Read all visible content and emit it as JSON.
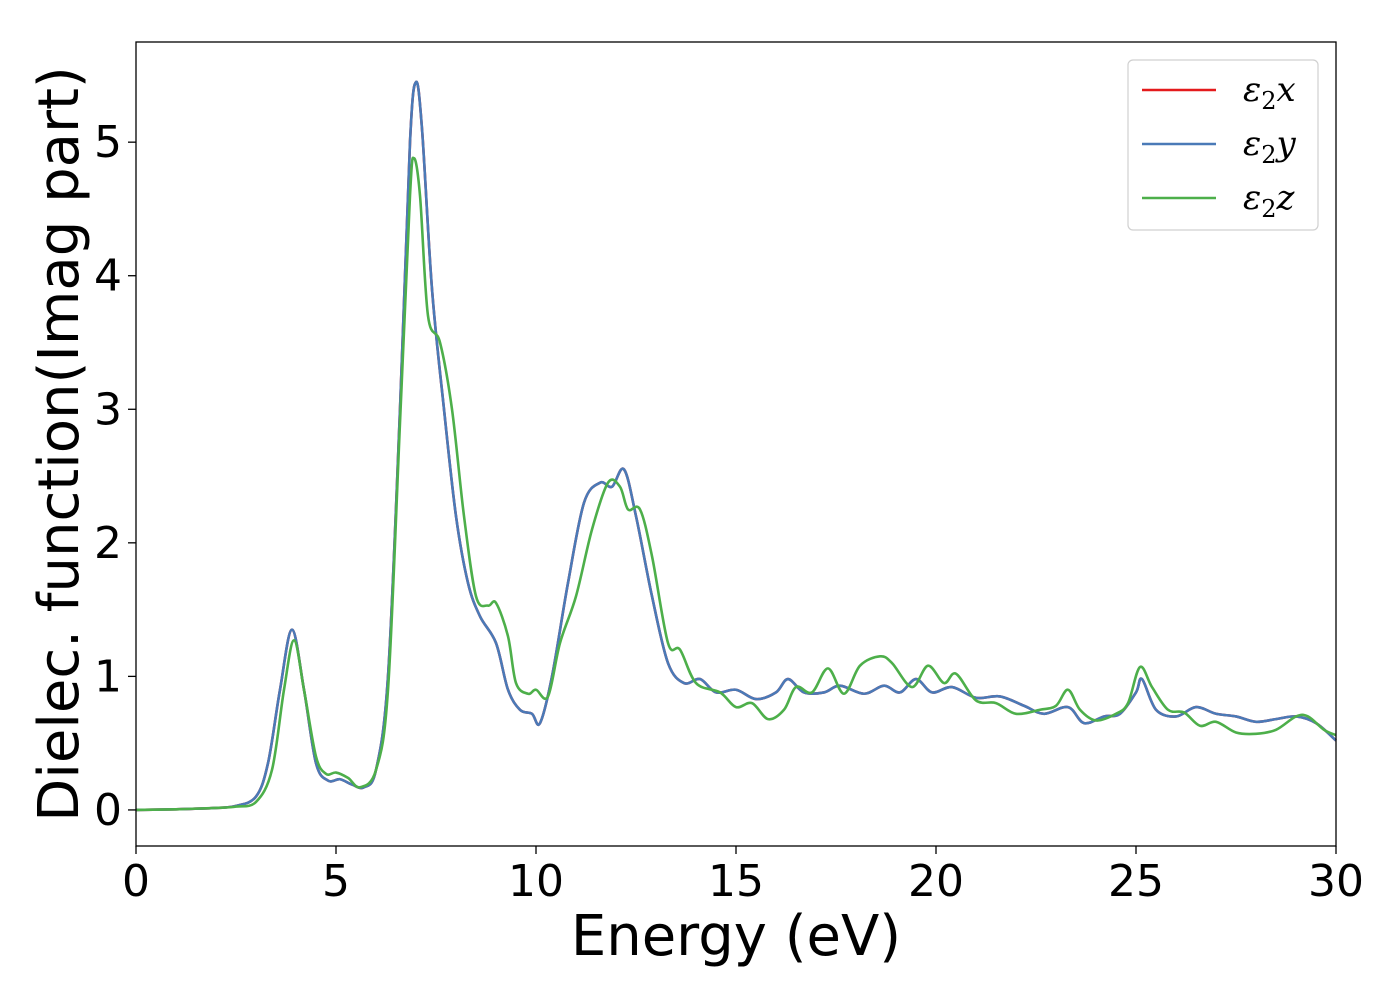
{
  "chart_data": {
    "type": "line",
    "xlabel": "Energy (eV)",
    "ylabel": "Dielec. function(Imag part)",
    "xlim": [
      0,
      30
    ],
    "ylim": [
      -0.27,
      5.75
    ],
    "xticks": [
      0,
      5,
      10,
      15,
      20,
      25,
      30
    ],
    "yticks": [
      0,
      1,
      2,
      3,
      4,
      5
    ],
    "grid": false,
    "legend_position": "top-right",
    "series": [
      {
        "name": "ε2x",
        "legend": {
          "base": "ε",
          "sub": "2",
          "var": "x"
        },
        "color": "#e41a1c",
        "points": [
          [
            0,
            0
          ],
          [
            1,
            0.005
          ],
          [
            2,
            0.015
          ],
          [
            2.5,
            0.03
          ],
          [
            3,
            0.1
          ],
          [
            3.3,
            0.35
          ],
          [
            3.6,
            0.9
          ],
          [
            3.9,
            1.35
          ],
          [
            4.2,
            0.9
          ],
          [
            4.5,
            0.35
          ],
          [
            4.8,
            0.22
          ],
          [
            5.1,
            0.23
          ],
          [
            5.4,
            0.19
          ],
          [
            5.7,
            0.17
          ],
          [
            6,
            0.3
          ],
          [
            6.3,
            1.0
          ],
          [
            6.6,
            3.0
          ],
          [
            6.85,
            5.0
          ],
          [
            7.0,
            5.45
          ],
          [
            7.15,
            5.1
          ],
          [
            7.4,
            3.9
          ],
          [
            7.7,
            3.0
          ],
          [
            8.0,
            2.2
          ],
          [
            8.3,
            1.7
          ],
          [
            8.6,
            1.45
          ],
          [
            9.0,
            1.25
          ],
          [
            9.3,
            0.9
          ],
          [
            9.6,
            0.75
          ],
          [
            9.9,
            0.72
          ],
          [
            10.1,
            0.65
          ],
          [
            10.4,
            1.0
          ],
          [
            10.8,
            1.7
          ],
          [
            11.2,
            2.3
          ],
          [
            11.6,
            2.45
          ],
          [
            11.9,
            2.42
          ],
          [
            12.2,
            2.55
          ],
          [
            12.5,
            2.2
          ],
          [
            12.9,
            1.6
          ],
          [
            13.3,
            1.1
          ],
          [
            13.7,
            0.95
          ],
          [
            14.1,
            0.98
          ],
          [
            14.5,
            0.88
          ],
          [
            15.0,
            0.9
          ],
          [
            15.5,
            0.83
          ],
          [
            16.0,
            0.88
          ],
          [
            16.3,
            0.98
          ],
          [
            16.7,
            0.88
          ],
          [
            17.2,
            0.88
          ],
          [
            17.6,
            0.93
          ],
          [
            18.2,
            0.87
          ],
          [
            18.7,
            0.93
          ],
          [
            19.1,
            0.88
          ],
          [
            19.5,
            0.98
          ],
          [
            19.9,
            0.88
          ],
          [
            20.4,
            0.92
          ],
          [
            21.0,
            0.84
          ],
          [
            21.6,
            0.85
          ],
          [
            22.2,
            0.78
          ],
          [
            22.7,
            0.72
          ],
          [
            23.3,
            0.77
          ],
          [
            23.7,
            0.65
          ],
          [
            24.2,
            0.7
          ],
          [
            24.6,
            0.72
          ],
          [
            25.0,
            0.88
          ],
          [
            25.15,
            0.98
          ],
          [
            25.5,
            0.75
          ],
          [
            26.0,
            0.7
          ],
          [
            26.5,
            0.77
          ],
          [
            27.0,
            0.72
          ],
          [
            27.5,
            0.7
          ],
          [
            28.0,
            0.66
          ],
          [
            28.5,
            0.68
          ],
          [
            29.0,
            0.7
          ],
          [
            29.5,
            0.65
          ],
          [
            30.0,
            0.52
          ]
        ]
      },
      {
        "name": "ε2y",
        "legend": {
          "base": "ε",
          "sub": "2",
          "var": "y"
        },
        "color": "#4a7ab7",
        "points": [
          [
            0,
            0
          ],
          [
            1,
            0.005
          ],
          [
            2,
            0.015
          ],
          [
            2.5,
            0.03
          ],
          [
            3,
            0.1
          ],
          [
            3.3,
            0.35
          ],
          [
            3.6,
            0.9
          ],
          [
            3.9,
            1.35
          ],
          [
            4.2,
            0.9
          ],
          [
            4.5,
            0.35
          ],
          [
            4.8,
            0.22
          ],
          [
            5.1,
            0.23
          ],
          [
            5.4,
            0.19
          ],
          [
            5.7,
            0.17
          ],
          [
            6,
            0.3
          ],
          [
            6.3,
            1.0
          ],
          [
            6.6,
            3.0
          ],
          [
            6.85,
            5.0
          ],
          [
            7.0,
            5.45
          ],
          [
            7.15,
            5.1
          ],
          [
            7.4,
            3.9
          ],
          [
            7.7,
            3.0
          ],
          [
            8.0,
            2.2
          ],
          [
            8.3,
            1.7
          ],
          [
            8.6,
            1.45
          ],
          [
            9.0,
            1.25
          ],
          [
            9.3,
            0.9
          ],
          [
            9.6,
            0.75
          ],
          [
            9.9,
            0.72
          ],
          [
            10.1,
            0.65
          ],
          [
            10.4,
            1.0
          ],
          [
            10.8,
            1.7
          ],
          [
            11.2,
            2.3
          ],
          [
            11.6,
            2.45
          ],
          [
            11.9,
            2.42
          ],
          [
            12.2,
            2.55
          ],
          [
            12.5,
            2.2
          ],
          [
            12.9,
            1.6
          ],
          [
            13.3,
            1.1
          ],
          [
            13.7,
            0.95
          ],
          [
            14.1,
            0.98
          ],
          [
            14.5,
            0.88
          ],
          [
            15.0,
            0.9
          ],
          [
            15.5,
            0.83
          ],
          [
            16.0,
            0.88
          ],
          [
            16.3,
            0.98
          ],
          [
            16.7,
            0.88
          ],
          [
            17.2,
            0.88
          ],
          [
            17.6,
            0.93
          ],
          [
            18.2,
            0.87
          ],
          [
            18.7,
            0.93
          ],
          [
            19.1,
            0.88
          ],
          [
            19.5,
            0.98
          ],
          [
            19.9,
            0.88
          ],
          [
            20.4,
            0.92
          ],
          [
            21.0,
            0.84
          ],
          [
            21.6,
            0.85
          ],
          [
            22.2,
            0.78
          ],
          [
            22.7,
            0.72
          ],
          [
            23.3,
            0.77
          ],
          [
            23.7,
            0.65
          ],
          [
            24.2,
            0.7
          ],
          [
            24.6,
            0.72
          ],
          [
            25.0,
            0.88
          ],
          [
            25.15,
            0.98
          ],
          [
            25.5,
            0.75
          ],
          [
            26.0,
            0.7
          ],
          [
            26.5,
            0.77
          ],
          [
            27.0,
            0.72
          ],
          [
            27.5,
            0.7
          ],
          [
            28.0,
            0.66
          ],
          [
            28.5,
            0.68
          ],
          [
            29.0,
            0.7
          ],
          [
            29.5,
            0.65
          ],
          [
            30.0,
            0.52
          ]
        ]
      },
      {
        "name": "ε2z",
        "legend": {
          "base": "ε",
          "sub": "2",
          "var": "z"
        },
        "color": "#4daf4a",
        "points": [
          [
            0,
            0
          ],
          [
            1,
            0.005
          ],
          [
            2,
            0.015
          ],
          [
            2.5,
            0.025
          ],
          [
            3,
            0.06
          ],
          [
            3.4,
            0.3
          ],
          [
            3.7,
            0.9
          ],
          [
            3.95,
            1.27
          ],
          [
            4.2,
            0.9
          ],
          [
            4.5,
            0.4
          ],
          [
            4.75,
            0.27
          ],
          [
            5.0,
            0.28
          ],
          [
            5.3,
            0.24
          ],
          [
            5.6,
            0.17
          ],
          [
            6,
            0.3
          ],
          [
            6.3,
            0.9
          ],
          [
            6.6,
            2.9
          ],
          [
            6.85,
            4.6
          ],
          [
            6.95,
            4.88
          ],
          [
            7.1,
            4.6
          ],
          [
            7.3,
            3.7
          ],
          [
            7.6,
            3.5
          ],
          [
            7.9,
            3.0
          ],
          [
            8.2,
            2.2
          ],
          [
            8.5,
            1.6
          ],
          [
            8.8,
            1.53
          ],
          [
            9.0,
            1.55
          ],
          [
            9.3,
            1.3
          ],
          [
            9.5,
            0.95
          ],
          [
            9.8,
            0.87
          ],
          [
            10.0,
            0.9
          ],
          [
            10.3,
            0.85
          ],
          [
            10.6,
            1.25
          ],
          [
            11.0,
            1.6
          ],
          [
            11.4,
            2.1
          ],
          [
            11.8,
            2.45
          ],
          [
            12.1,
            2.42
          ],
          [
            12.3,
            2.25
          ],
          [
            12.6,
            2.25
          ],
          [
            12.9,
            1.9
          ],
          [
            13.3,
            1.25
          ],
          [
            13.6,
            1.2
          ],
          [
            14.0,
            0.95
          ],
          [
            14.6,
            0.88
          ],
          [
            15.0,
            0.77
          ],
          [
            15.4,
            0.8
          ],
          [
            15.8,
            0.68
          ],
          [
            16.2,
            0.75
          ],
          [
            16.5,
            0.92
          ],
          [
            16.9,
            0.88
          ],
          [
            17.3,
            1.06
          ],
          [
            17.7,
            0.87
          ],
          [
            18.1,
            1.08
          ],
          [
            18.6,
            1.15
          ],
          [
            18.9,
            1.1
          ],
          [
            19.4,
            0.92
          ],
          [
            19.8,
            1.08
          ],
          [
            20.2,
            0.95
          ],
          [
            20.5,
            1.02
          ],
          [
            21.0,
            0.82
          ],
          [
            21.5,
            0.8
          ],
          [
            22.0,
            0.72
          ],
          [
            22.6,
            0.75
          ],
          [
            23.0,
            0.78
          ],
          [
            23.3,
            0.9
          ],
          [
            23.6,
            0.75
          ],
          [
            24.0,
            0.67
          ],
          [
            24.5,
            0.72
          ],
          [
            24.8,
            0.8
          ],
          [
            25.1,
            1.07
          ],
          [
            25.4,
            0.92
          ],
          [
            25.8,
            0.75
          ],
          [
            26.2,
            0.73
          ],
          [
            26.6,
            0.63
          ],
          [
            27.0,
            0.66
          ],
          [
            27.5,
            0.58
          ],
          [
            28.0,
            0.57
          ],
          [
            28.5,
            0.6
          ],
          [
            29.0,
            0.7
          ],
          [
            29.3,
            0.7
          ],
          [
            29.7,
            0.6
          ],
          [
            30.0,
            0.56
          ]
        ]
      }
    ]
  }
}
